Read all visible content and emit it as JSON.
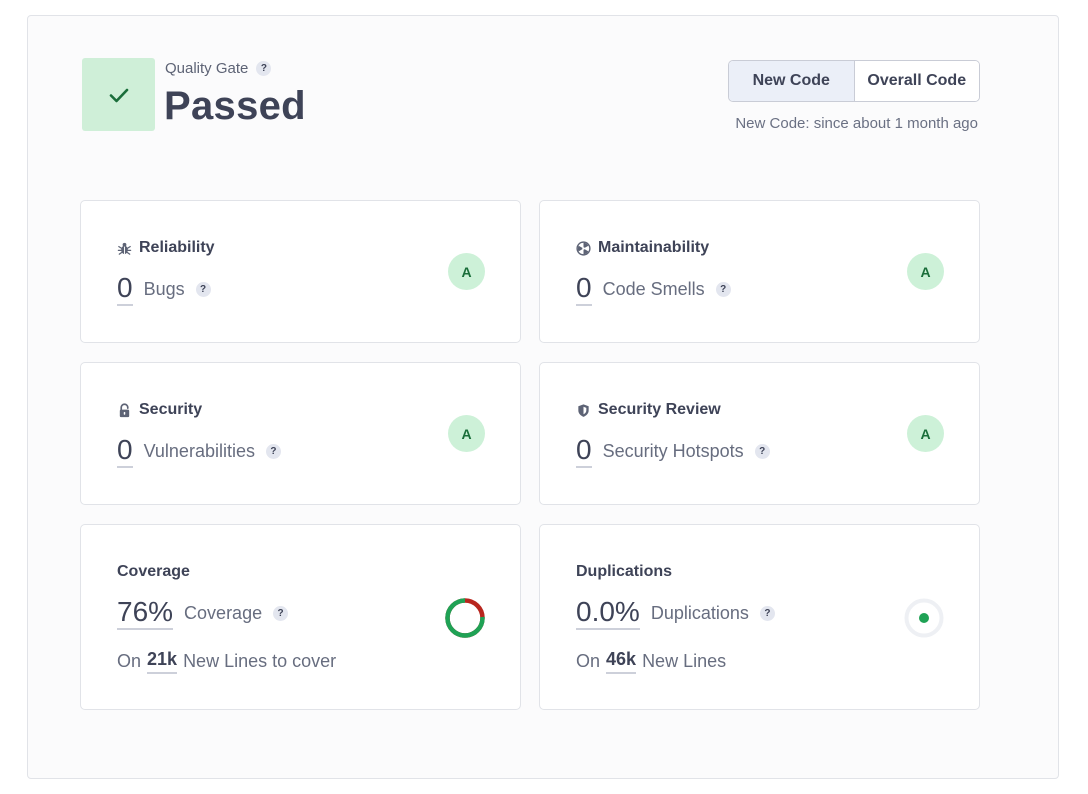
{
  "quality_gate": {
    "label": "Quality Gate",
    "status": "Passed",
    "status_color": "#cfefd8",
    "check_color": "#1a6e3a"
  },
  "toggle": {
    "new_code": "New Code",
    "overall_code": "Overall Code",
    "active": "new_code"
  },
  "since_text": "New Code: since about 1 month ago",
  "help_glyph": "?",
  "cards": {
    "reliability": {
      "title": "Reliability",
      "icon": "bug-icon",
      "value": "0",
      "label": "Bugs",
      "rating": "A"
    },
    "maintainability": {
      "title": "Maintainability",
      "icon": "smell-icon",
      "value": "0",
      "label": "Code Smells",
      "rating": "A"
    },
    "security": {
      "title": "Security",
      "icon": "lock-icon",
      "value": "0",
      "label": "Vulnerabilities",
      "rating": "A"
    },
    "security_review": {
      "title": "Security Review",
      "icon": "shield-icon",
      "value": "0",
      "label": "Security Hotspots",
      "rating": "A"
    },
    "coverage": {
      "title": "Coverage",
      "value": "76%",
      "label": "Coverage",
      "sub_prefix": "On",
      "sub_value": "21k",
      "sub_suffix": "New Lines to cover",
      "percent": 76,
      "covered_color": "#1fa255",
      "uncovered_color": "#b8261e"
    },
    "duplications": {
      "title": "Duplications",
      "value": "0.0%",
      "label": "Duplications",
      "sub_prefix": "On",
      "sub_value": "46k",
      "sub_suffix": "New Lines",
      "percent": 0.0,
      "indicator_color": "#1fa255"
    }
  },
  "colors": {
    "rating_bg": "#cdf1d8",
    "rating_text": "#1a6e3a",
    "text_primary": "#3e4357"
  }
}
